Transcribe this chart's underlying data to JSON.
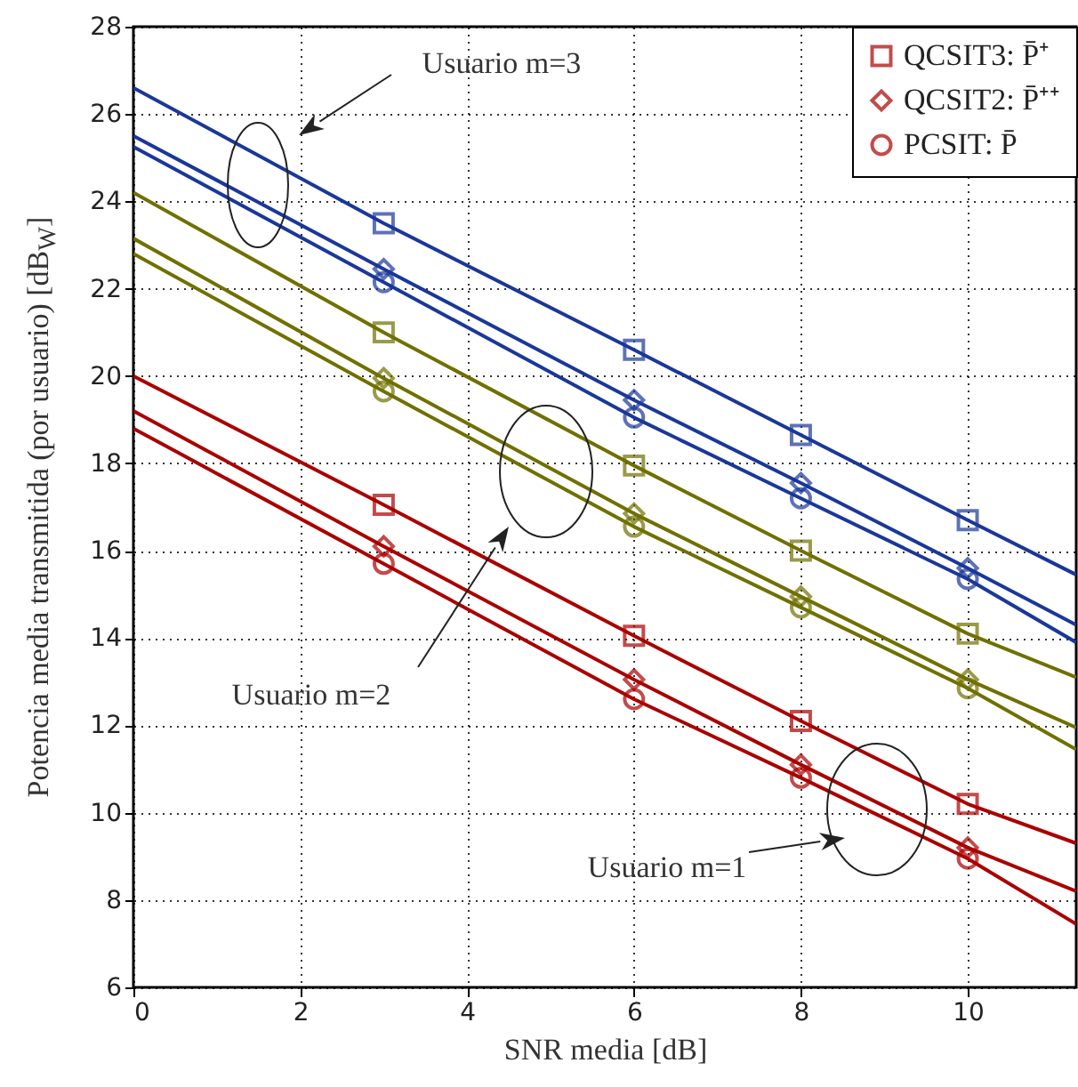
{
  "chart_data": {
    "type": "line",
    "xlabel": "SNR media [dB]",
    "ylabel": "Potencia media transmitida (por usuario) [dB$_{W}$]",
    "xlim": [
      0,
      11.3
    ],
    "ylim": [
      6,
      28
    ],
    "xticks": [
      0,
      2,
      4,
      6,
      8,
      10
    ],
    "yticks": [
      6,
      8,
      10,
      12,
      14,
      16,
      18,
      20,
      22,
      24,
      26,
      28
    ],
    "grid": true,
    "legend": "top right",
    "annotations": [
      "Usuario m=3",
      "Usuario m=2",
      "Usuario m=1"
    ],
    "series": [
      {
        "marker": "none",
        "color": "#aa0000",
        "x": [
          0,
          3,
          6,
          8,
          10,
          11.3
        ],
        "values": [
          20.0,
          17.05,
          14.05,
          12.1,
          10.2,
          9.3
        ]
      },
      {
        "type": "line",
        "marker": "none",
        "color": "#aa0000",
        "x": [
          0,
          3,
          6,
          8,
          10,
          11.3
        ],
        "values": [
          19.2,
          16.1,
          13.05,
          11.1,
          9.2,
          8.2
        ]
      },
      {
        "type": "line",
        "marker": "none",
        "color": "#aa0000",
        "x": [
          0,
          3,
          6,
          8,
          10,
          11.3
        ],
        "values": [
          18.8,
          15.7,
          12.6,
          10.8,
          8.95,
          7.45
        ]
      },
      {
        "type": "line",
        "marker": "none",
        "color": "#707000",
        "x": [
          0,
          3,
          6,
          8,
          10,
          11.3
        ],
        "values": [
          24.2,
          21.0,
          17.95,
          16.0,
          14.1,
          13.1
        ]
      },
      {
        "type": "line",
        "marker": "none",
        "color": "#707000",
        "x": [
          0,
          3,
          6,
          8,
          10,
          11.3
        ],
        "values": [
          23.15,
          19.95,
          16.85,
          14.95,
          13.05,
          11.95
        ]
      },
      {
        "type": "line",
        "marker": "none",
        "color": "#707000",
        "x": [
          0,
          3,
          6,
          8,
          10,
          11.3
        ],
        "values": [
          22.8,
          19.65,
          16.55,
          14.7,
          12.85,
          11.45
        ]
      },
      {
        "type": "line",
        "marker": "none",
        "color": "#1a3799",
        "x": [
          0,
          3,
          6,
          8,
          10,
          11.3
        ],
        "values": [
          26.6,
          23.5,
          20.6,
          18.65,
          16.7,
          15.45
        ]
      },
      {
        "type": "line",
        "marker": "none",
        "color": "#1a3799",
        "x": [
          0,
          3,
          6,
          8,
          10,
          11.3
        ],
        "values": [
          25.5,
          22.45,
          19.45,
          17.55,
          15.6,
          14.3
        ]
      },
      {
        "type": "line",
        "marker": "none",
        "color": "#1a3799",
        "x": [
          0,
          3,
          6,
          8,
          10,
          11.3
        ],
        "values": [
          25.25,
          22.15,
          19.05,
          17.2,
          15.35,
          13.9
        ]
      },
      {
        "type": "scatter",
        "marker": "square",
        "name": "QCSIT3: P̄⁺",
        "color": "#aa0000",
        "x": [
          3,
          6,
          8,
          10
        ],
        "values": [
          17.05,
          14.05,
          12.1,
          10.2
        ]
      },
      {
        "type": "scatter",
        "marker": "diamond",
        "name": "QCSIT2: P̄⁺⁺",
        "color": "#aa0000",
        "x": [
          3,
          6,
          8,
          10
        ],
        "values": [
          16.1,
          13.05,
          11.1,
          9.2
        ]
      },
      {
        "type": "scatter",
        "marker": "circle",
        "name": "PCSIT: P̄",
        "color": "#aa0000",
        "x": [
          3,
          6,
          8,
          10
        ],
        "values": [
          15.7,
          12.6,
          10.8,
          8.95
        ]
      },
      {
        "type": "scatter",
        "marker": "square",
        "color": "#707000",
        "x": [
          3,
          6,
          8,
          10
        ],
        "values": [
          21.0,
          17.95,
          16.0,
          14.1
        ]
      },
      {
        "type": "scatter",
        "marker": "diamond",
        "color": "#707000",
        "x": [
          3,
          6,
          8,
          10
        ],
        "values": [
          19.95,
          16.85,
          14.95,
          13.05
        ]
      },
      {
        "type": "scatter",
        "marker": "circle",
        "color": "#707000",
        "x": [
          3,
          6,
          8,
          10
        ],
        "values": [
          19.65,
          16.55,
          14.7,
          12.85
        ]
      },
      {
        "type": "scatter",
        "marker": "square",
        "color": "#1a3799",
        "x": [
          3,
          6,
          8,
          10
        ],
        "values": [
          23.5,
          20.6,
          18.65,
          16.7
        ]
      },
      {
        "type": "scatter",
        "marker": "diamond",
        "color": "#1a3799",
        "x": [
          3,
          6,
          8,
          10
        ],
        "values": [
          22.45,
          19.45,
          17.55,
          15.6
        ]
      },
      {
        "type": "scatter",
        "marker": "circle",
        "color": "#1a3799",
        "x": [
          3,
          6,
          8,
          10
        ],
        "values": [
          22.15,
          19.05,
          17.2,
          15.35
        ]
      }
    ]
  }
}
